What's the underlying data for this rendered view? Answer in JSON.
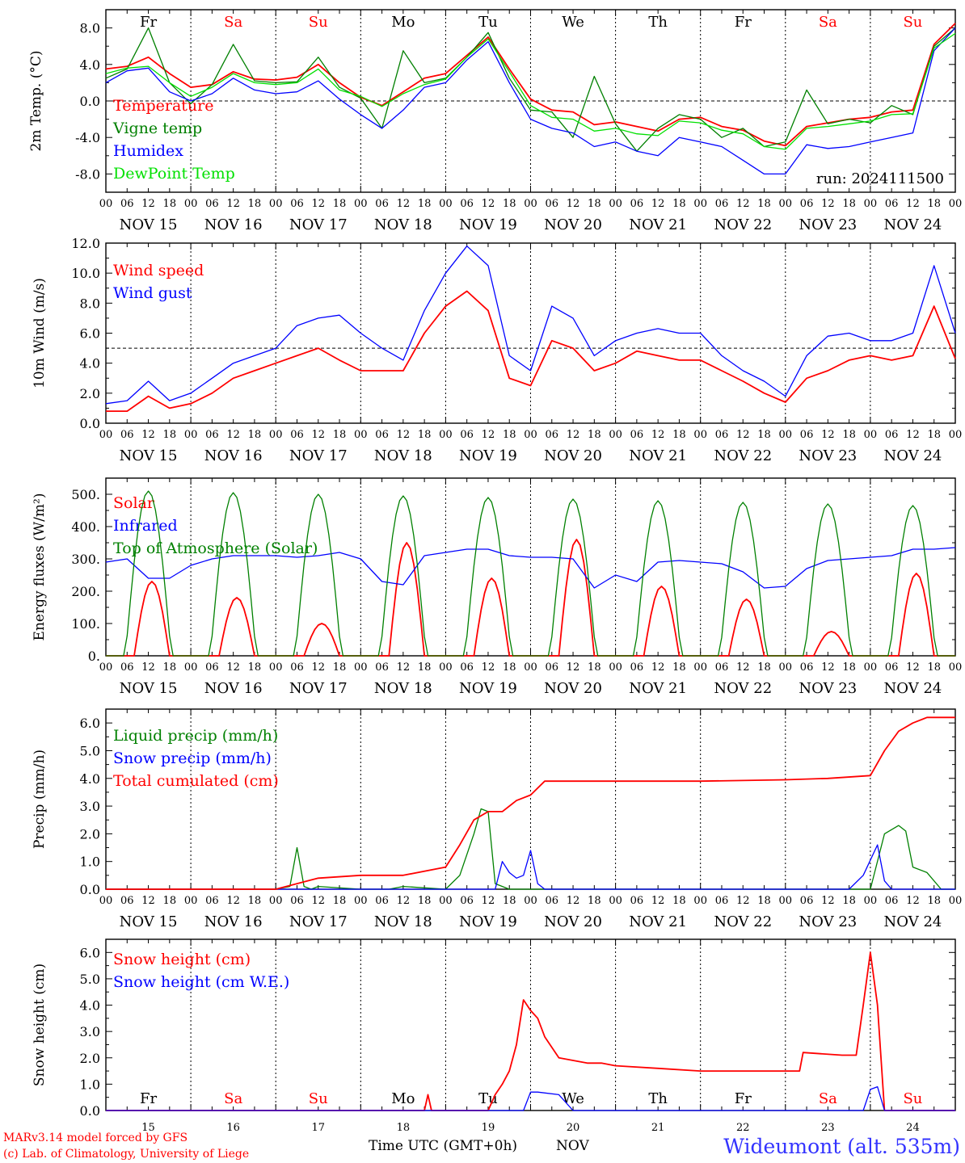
{
  "meta": {
    "location": "Wideumont (alt. 535m)",
    "credit_line1": "MARv3.14 model forced by GFS",
    "credit_line2": "(c) Lab. of Climatology, University of Liege",
    "time_axis_label": "Time UTC (GMT+0h)",
    "time_axis_month": "NOV"
  },
  "days": [
    {
      "date": "NOV 15",
      "dow": "Fr",
      "num": "15",
      "weekend": false
    },
    {
      "date": "NOV 16",
      "dow": "Sa",
      "num": "16",
      "weekend": true
    },
    {
      "date": "NOV 17",
      "dow": "Su",
      "num": "17",
      "weekend": true
    },
    {
      "date": "NOV 18",
      "dow": "Mo",
      "num": "18",
      "weekend": false
    },
    {
      "date": "NOV 19",
      "dow": "Tu",
      "num": "19",
      "weekend": false
    },
    {
      "date": "NOV 20",
      "dow": "We",
      "num": "20",
      "weekend": false
    },
    {
      "date": "NOV 21",
      "dow": "Th",
      "num": "21",
      "weekend": false
    },
    {
      "date": "NOV 22",
      "dow": "Fr",
      "num": "22",
      "weekend": false
    },
    {
      "date": "NOV 23",
      "dow": "Sa",
      "num": "23",
      "weekend": true
    },
    {
      "date": "NOV 24",
      "dow": "Su",
      "num": "24",
      "weekend": true
    }
  ],
  "hour_ticks": [
    "00",
    "06",
    "12",
    "18"
  ],
  "final_tick": "00",
  "colors": {
    "red": "#ff0000",
    "green": "#008000",
    "blue": "#0000ff",
    "lime": "#00e000",
    "weekend": "#ff0000",
    "axis": "#000000",
    "title": "#3333ff"
  },
  "chart_data": [
    {
      "type": "line",
      "ylabel": "2m Temp. (°C)",
      "ylim": [
        -10,
        10
      ],
      "y_ticks": [
        -8,
        -4,
        0,
        4,
        8
      ],
      "y_tick_labels": [
        "-8.0",
        "-4.0",
        "0.0",
        "4.0",
        "8.0"
      ],
      "ref_line": 0,
      "annotation": "run: 2024111500",
      "show_dow": true,
      "x_unit": "hours since NOV 15 00 UTC",
      "series": [
        {
          "name": "Temperature",
          "color": "red",
          "x": [
            0,
            6,
            12,
            18,
            24,
            30,
            36,
            42,
            48,
            54,
            60,
            66,
            72,
            78,
            84,
            90,
            96,
            102,
            108,
            114,
            120,
            126,
            132,
            138,
            144,
            150,
            156,
            162,
            168,
            174,
            180,
            186,
            192,
            198,
            204,
            210,
            216,
            222,
            228,
            234,
            240
          ],
          "y": [
            3.5,
            3.8,
            4.8,
            3.0,
            1.5,
            1.8,
            3.2,
            2.4,
            2.3,
            2.6,
            4.0,
            2.0,
            0.4,
            -0.5,
            1.0,
            2.5,
            3.0,
            5.0,
            7.0,
            3.5,
            0.2,
            -1.0,
            -1.2,
            -2.6,
            -2.3,
            -2.8,
            -3.3,
            -2.0,
            -1.8,
            -2.8,
            -3.2,
            -4.4,
            -4.9,
            -2.8,
            -2.4,
            -2.0,
            -1.8,
            -1.2,
            -1.0,
            6.2,
            8.5
          ]
        },
        {
          "name": "Vigne temp",
          "color": "green",
          "x": [
            0,
            6,
            12,
            18,
            24,
            30,
            36,
            42,
            48,
            54,
            60,
            66,
            72,
            78,
            84,
            90,
            96,
            102,
            108,
            114,
            120,
            126,
            132,
            138,
            144,
            150,
            156,
            162,
            168,
            174,
            180,
            186,
            192,
            198,
            204,
            210,
            216,
            222,
            228,
            234,
            240
          ],
          "y": [
            2.5,
            3.5,
            8.0,
            2.0,
            -0.3,
            1.8,
            6.2,
            2.2,
            2.0,
            2.1,
            4.8,
            1.5,
            0.3,
            -3.0,
            5.5,
            2.0,
            2.5,
            4.8,
            7.5,
            2.5,
            -1.0,
            -1.2,
            -4.0,
            2.7,
            -2.5,
            -5.5,
            -3.0,
            -1.5,
            -2.0,
            -4.0,
            -3.0,
            -5.0,
            -4.5,
            1.2,
            -2.5,
            -2.0,
            -2.4,
            -0.5,
            -1.5,
            6.0,
            8.0
          ]
        },
        {
          "name": "Humidex",
          "color": "blue",
          "x": [
            0,
            6,
            12,
            18,
            24,
            30,
            36,
            42,
            48,
            54,
            60,
            66,
            72,
            78,
            84,
            90,
            96,
            102,
            108,
            114,
            120,
            126,
            132,
            138,
            144,
            150,
            156,
            162,
            168,
            174,
            180,
            186,
            192,
            198,
            204,
            210,
            216,
            222,
            228,
            234,
            240
          ],
          "y": [
            2.0,
            3.3,
            3.6,
            1.0,
            0.0,
            0.8,
            2.5,
            1.2,
            0.8,
            1.0,
            2.2,
            0.2,
            -1.5,
            -3.0,
            -1.0,
            1.5,
            2.0,
            4.5,
            6.5,
            2.0,
            -2.0,
            -3.0,
            -3.5,
            -5.0,
            -4.5,
            -5.5,
            -6.0,
            -4.0,
            -4.5,
            -5.0,
            -6.5,
            -8.0,
            -8.0,
            -4.8,
            -5.2,
            -5.0,
            -4.5,
            -4.0,
            -3.5,
            5.5,
            8.0
          ]
        },
        {
          "name": "DewPoint Temp",
          "color": "lime",
          "x": [
            0,
            6,
            12,
            18,
            24,
            30,
            36,
            42,
            48,
            54,
            60,
            66,
            72,
            78,
            84,
            90,
            96,
            102,
            108,
            114,
            120,
            126,
            132,
            138,
            144,
            150,
            156,
            162,
            168,
            174,
            180,
            186,
            192,
            198,
            204,
            210,
            216,
            222,
            228,
            234,
            240
          ],
          "y": [
            3.0,
            3.6,
            3.8,
            2.0,
            0.5,
            1.5,
            3.0,
            2.0,
            1.8,
            2.0,
            3.5,
            1.2,
            0.5,
            -0.6,
            0.8,
            1.8,
            2.4,
            4.8,
            6.8,
            3.2,
            -0.5,
            -1.8,
            -2.0,
            -3.3,
            -3.0,
            -3.6,
            -3.8,
            -2.2,
            -2.4,
            -3.2,
            -3.6,
            -5.0,
            -5.3,
            -3.0,
            -2.8,
            -2.5,
            -2.2,
            -1.5,
            -1.4,
            5.8,
            7.4
          ]
        }
      ]
    },
    {
      "type": "line",
      "ylabel": "10m Wind (m/s)",
      "ylim": [
        0,
        12
      ],
      "y_ticks": [
        0,
        2,
        4,
        6,
        8,
        10,
        12
      ],
      "y_tick_labels": [
        "0.0",
        "2.0",
        "4.0",
        "6.0",
        "8.0",
        "10.0",
        "12.0"
      ],
      "ref_line": 5,
      "show_dow": false,
      "series": [
        {
          "name": "Wind speed",
          "color": "red",
          "x": [
            0,
            6,
            12,
            18,
            24,
            30,
            36,
            42,
            48,
            54,
            60,
            66,
            72,
            78,
            84,
            90,
            96,
            102,
            108,
            114,
            120,
            126,
            132,
            138,
            144,
            150,
            156,
            162,
            168,
            174,
            180,
            186,
            192,
            198,
            204,
            210,
            216,
            222,
            228,
            234,
            240
          ],
          "y": [
            0.8,
            0.8,
            1.8,
            1.0,
            1.3,
            2.0,
            3.0,
            3.5,
            4.0,
            4.5,
            5.0,
            4.2,
            3.5,
            3.5,
            3.5,
            6.0,
            7.8,
            8.8,
            7.5,
            3.0,
            2.5,
            5.5,
            5.0,
            3.5,
            4.0,
            4.8,
            4.5,
            4.2,
            4.2,
            3.5,
            2.8,
            2.0,
            1.4,
            3.0,
            3.5,
            4.2,
            4.5,
            4.2,
            4.5,
            7.8,
            4.3
          ]
        },
        {
          "name": "Wind gust",
          "color": "blue",
          "x": [
            0,
            6,
            12,
            18,
            24,
            30,
            36,
            42,
            48,
            54,
            60,
            66,
            72,
            78,
            84,
            90,
            96,
            102,
            108,
            114,
            120,
            126,
            132,
            138,
            144,
            150,
            156,
            162,
            168,
            174,
            180,
            186,
            192,
            198,
            204,
            210,
            216,
            222,
            228,
            234,
            240
          ],
          "y": [
            1.3,
            1.5,
            2.8,
            1.5,
            2.0,
            3.0,
            4.0,
            4.5,
            5.0,
            6.5,
            7.0,
            7.2,
            6.0,
            5.0,
            4.2,
            7.5,
            10.0,
            11.8,
            10.5,
            4.5,
            3.5,
            7.8,
            7.0,
            4.5,
            5.5,
            6.0,
            6.3,
            6.0,
            6.0,
            4.5,
            3.5,
            2.8,
            1.8,
            4.5,
            5.8,
            6.0,
            5.5,
            5.5,
            6.0,
            10.5,
            6.0
          ]
        }
      ]
    },
    {
      "type": "line",
      "ylabel": "Energy fluxes (W/m²)",
      "ylim": [
        0,
        550
      ],
      "y_ticks": [
        0,
        100,
        200,
        300,
        400,
        500
      ],
      "y_tick_labels": [
        "0.",
        "100.",
        "200.",
        "300.",
        "400.",
        "500."
      ],
      "show_dow": false,
      "series": [
        {
          "name": "Solar",
          "color": "red",
          "daily_peak_hour": 13,
          "daily_peaks": [
            230,
            180,
            100,
            350,
            240,
            360,
            215,
            175,
            75,
            255
          ]
        },
        {
          "name": "Infrared",
          "color": "blue",
          "x": [
            0,
            6,
            12,
            18,
            24,
            30,
            36,
            42,
            48,
            54,
            60,
            66,
            72,
            78,
            84,
            90,
            96,
            102,
            108,
            114,
            120,
            126,
            132,
            138,
            144,
            150,
            156,
            162,
            168,
            174,
            180,
            186,
            192,
            198,
            204,
            210,
            216,
            222,
            228,
            234,
            240
          ],
          "y": [
            290,
            300,
            240,
            240,
            280,
            300,
            310,
            310,
            310,
            305,
            310,
            320,
            300,
            230,
            220,
            310,
            320,
            330,
            330,
            310,
            305,
            305,
            300,
            210,
            250,
            230,
            290,
            295,
            290,
            285,
            260,
            210,
            215,
            270,
            295,
            300,
            305,
            310,
            330,
            330,
            335
          ]
        },
        {
          "name": "Top of Atmosphere (Solar)",
          "color": "green",
          "daily_peak_hour": 12,
          "daily_peaks": [
            510,
            505,
            500,
            495,
            490,
            485,
            480,
            475,
            470,
            465
          ]
        }
      ]
    },
    {
      "type": "line",
      "ylabel": "Precip (mm/h)",
      "ylim": [
        0,
        6.5
      ],
      "y_ticks": [
        0,
        1,
        2,
        3,
        4,
        5,
        6
      ],
      "y_tick_labels": [
        "0.0",
        "1.0",
        "2.0",
        "3.0",
        "4.0",
        "5.0",
        "6.0"
      ],
      "show_dow": false,
      "series": [
        {
          "name": "Liquid precip (mm/h)",
          "color": "green",
          "x": [
            0,
            48,
            52,
            54,
            56,
            58,
            60,
            72,
            80,
            84,
            96,
            100,
            104,
            106,
            108,
            110,
            114,
            120,
            144,
            168,
            192,
            216,
            220,
            224,
            226,
            228,
            232,
            236,
            240
          ],
          "y": [
            0,
            0,
            0.1,
            1.5,
            0.1,
            0,
            0.1,
            0,
            0,
            0.1,
            0,
            0.5,
            2.0,
            2.9,
            2.8,
            0.2,
            0,
            0,
            0,
            0,
            0,
            0,
            2.0,
            2.3,
            2.1,
            0.8,
            0.6,
            0,
            0
          ]
        },
        {
          "name": "Snow precip (mm/h)",
          "color": "blue",
          "x": [
            0,
            110,
            112,
            114,
            116,
            118,
            120,
            122,
            124,
            210,
            214,
            218,
            220,
            222,
            240
          ],
          "y": [
            0,
            0,
            1.0,
            0.6,
            0.4,
            0.5,
            1.4,
            0.2,
            0,
            0,
            0.5,
            1.6,
            0.3,
            0,
            0
          ]
        },
        {
          "name": "Total cumulated (cm)",
          "color": "red",
          "x": [
            0,
            48,
            54,
            60,
            72,
            84,
            96,
            100,
            104,
            108,
            112,
            116,
            120,
            124,
            144,
            168,
            192,
            204,
            216,
            220,
            224,
            228,
            232,
            240
          ],
          "y": [
            0,
            0,
            0.2,
            0.4,
            0.5,
            0.5,
            0.8,
            1.6,
            2.5,
            2.8,
            2.8,
            3.2,
            3.4,
            3.9,
            3.9,
            3.9,
            3.95,
            4.0,
            4.1,
            5.0,
            5.7,
            6.0,
            6.2,
            6.2
          ]
        }
      ]
    },
    {
      "type": "line",
      "ylabel": "Snow height (cm)",
      "ylim": [
        0,
        6.5
      ],
      "y_ticks": [
        0,
        1,
        2,
        3,
        4,
        5,
        6
      ],
      "y_tick_labels": [
        "0.0",
        "1.0",
        "2.0",
        "3.0",
        "4.0",
        "5.0",
        "6.0"
      ],
      "show_dow": true,
      "bottom_axis": true,
      "series": [
        {
          "name": "Snow height (cm)",
          "color": "red",
          "x": [
            0,
            90,
            91,
            92,
            108,
            110,
            112,
            114,
            116,
            118,
            120,
            122,
            124,
            128,
            132,
            136,
            140,
            144,
            156,
            168,
            192,
            196,
            197,
            208,
            212,
            214,
            216,
            218,
            220,
            222,
            240
          ],
          "y": [
            0,
            0,
            0.6,
            0,
            0,
            0.6,
            1.0,
            1.5,
            2.5,
            4.2,
            3.8,
            3.5,
            2.8,
            2.0,
            1.9,
            1.8,
            1.8,
            1.7,
            1.6,
            1.5,
            1.5,
            1.5,
            2.2,
            2.1,
            2.1,
            4.0,
            6.0,
            4.0,
            0,
            0,
            0
          ]
        },
        {
          "name": "Snow height (cm W.E.)",
          "color": "blue",
          "x": [
            0,
            118,
            120,
            122,
            128,
            132,
            134,
            214,
            216,
            218,
            220,
            222,
            240
          ],
          "y": [
            0,
            0,
            0.7,
            0.7,
            0.6,
            0,
            0,
            0,
            0.8,
            0.9,
            0,
            0,
            0
          ]
        }
      ]
    }
  ]
}
